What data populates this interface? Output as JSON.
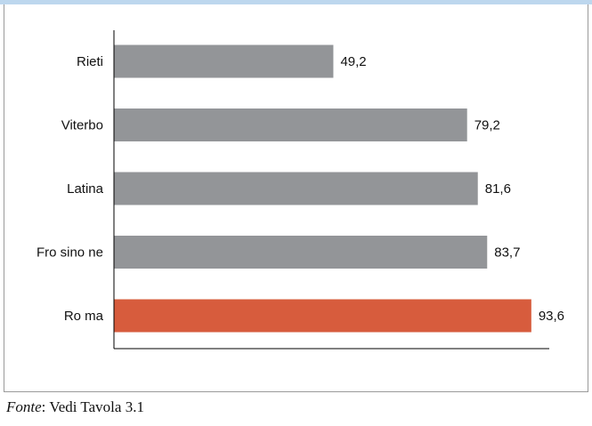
{
  "chart_data": {
    "type": "bar",
    "orientation": "horizontal",
    "categories": [
      "Rieti",
      "Viterbo",
      "Latina",
      "Fro sino ne",
      "Ro ma"
    ],
    "values": [
      49.2,
      79.2,
      81.6,
      83.7,
      93.6
    ],
    "value_labels": [
      "49,2",
      "79,2",
      "81,6",
      "83,7",
      "93,6"
    ],
    "bar_colors": [
      "#939598",
      "#939598",
      "#939598",
      "#939598",
      "#d75c3d"
    ],
    "xlim": [
      0,
      100
    ],
    "grid": false,
    "title": "",
    "xlabel": "",
    "ylabel": ""
  },
  "footer": {
    "source_label": "Fonte",
    "source_text": ": Vedi Tavola 3.1"
  },
  "colors": {
    "top_band": "#bdd7ee",
    "axis": "#000000"
  }
}
